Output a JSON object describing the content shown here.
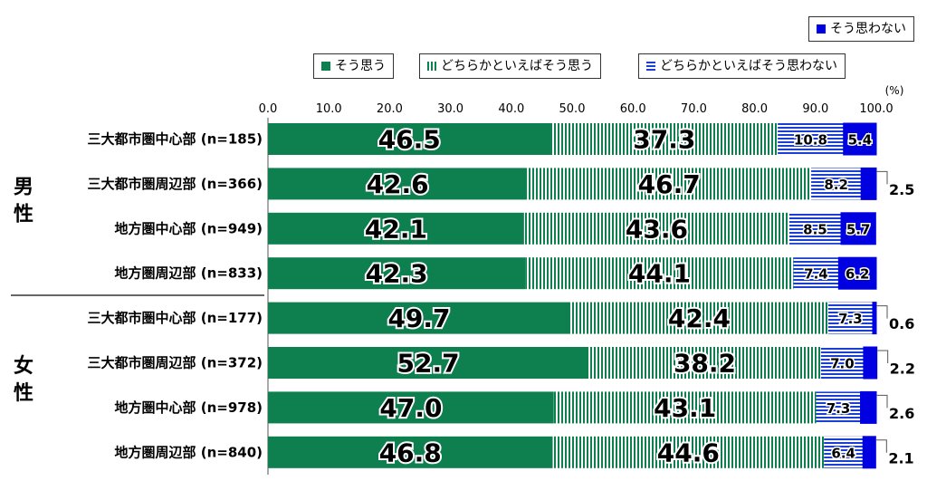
{
  "chart_data": {
    "type": "bar",
    "orientation": "horizontal",
    "stacked": true,
    "unit": "(%)",
    "xlim": [
      0,
      100
    ],
    "xticks": [
      "0.0",
      "10.0",
      "20.0",
      "30.0",
      "40.0",
      "50.0",
      "60.0",
      "70.0",
      "80.0",
      "90.0",
      "100.0"
    ],
    "groups": [
      {
        "label": "男性",
        "categories": [
          "三大都市圏中心部 (n=185)",
          "三大都市圏周辺部 (n=366)",
          "地方圏中心部 (n=949)",
          "地方圏周辺部 (n=833)"
        ]
      },
      {
        "label": "女性",
        "categories": [
          "三大都市圏中心部 (n=177)",
          "三大都市圏周辺部 (n=372)",
          "地方圏中心部 (n=978)",
          "地方圏周辺部 (n=840)"
        ]
      }
    ],
    "categories": [
      "三大都市圏中心部 (n=185)",
      "三大都市圏周辺部 (n=366)",
      "地方圏中心部 (n=949)",
      "地方圏周辺部 (n=833)",
      "三大都市圏中心部 (n=177)",
      "三大都市圏周辺部 (n=372)",
      "地方圏中心部 (n=978)",
      "地方圏周辺部 (n=840)"
    ],
    "series": [
      {
        "name": "そう思う",
        "color": "#0e8050",
        "pattern": "solid",
        "values": [
          46.5,
          42.6,
          42.1,
          42.3,
          49.7,
          52.7,
          47.0,
          46.8
        ],
        "labels": [
          "46.5",
          "42.6",
          "42.1",
          "42.3",
          "49.7",
          "52.7",
          "47.0",
          "46.8"
        ]
      },
      {
        "name": "どちらかといえばそう思う",
        "color": "#0e8050",
        "pattern": "vertical-lines",
        "values": [
          37.3,
          46.7,
          43.6,
          44.1,
          42.4,
          38.2,
          43.1,
          44.6
        ],
        "labels": [
          "37.3",
          "46.7",
          "43.6",
          "44.1",
          "42.4",
          "38.2",
          "43.1",
          "44.6"
        ]
      },
      {
        "name": "どちらかといえばそう思わない",
        "color": "#1a3fd6",
        "pattern": "horizontal-lines",
        "values": [
          10.8,
          8.2,
          8.5,
          7.4,
          7.3,
          7.0,
          7.3,
          6.4
        ],
        "labels": [
          "10.8",
          "8.2",
          "8.5",
          "7.4",
          "7.3",
          "7.0",
          "7.3",
          "6.4"
        ]
      },
      {
        "name": "そう思わない",
        "color": "#0000e0",
        "pattern": "solid",
        "values": [
          5.4,
          2.5,
          5.7,
          6.2,
          0.6,
          2.2,
          2.6,
          2.1
        ],
        "labels": [
          "5.4",
          "2.5",
          "5.7",
          "6.2",
          "0.6",
          "2.2",
          "2.6",
          "2.1"
        ],
        "label_outside": [
          false,
          true,
          false,
          false,
          true,
          true,
          true,
          true
        ]
      }
    ],
    "legend": "top"
  }
}
